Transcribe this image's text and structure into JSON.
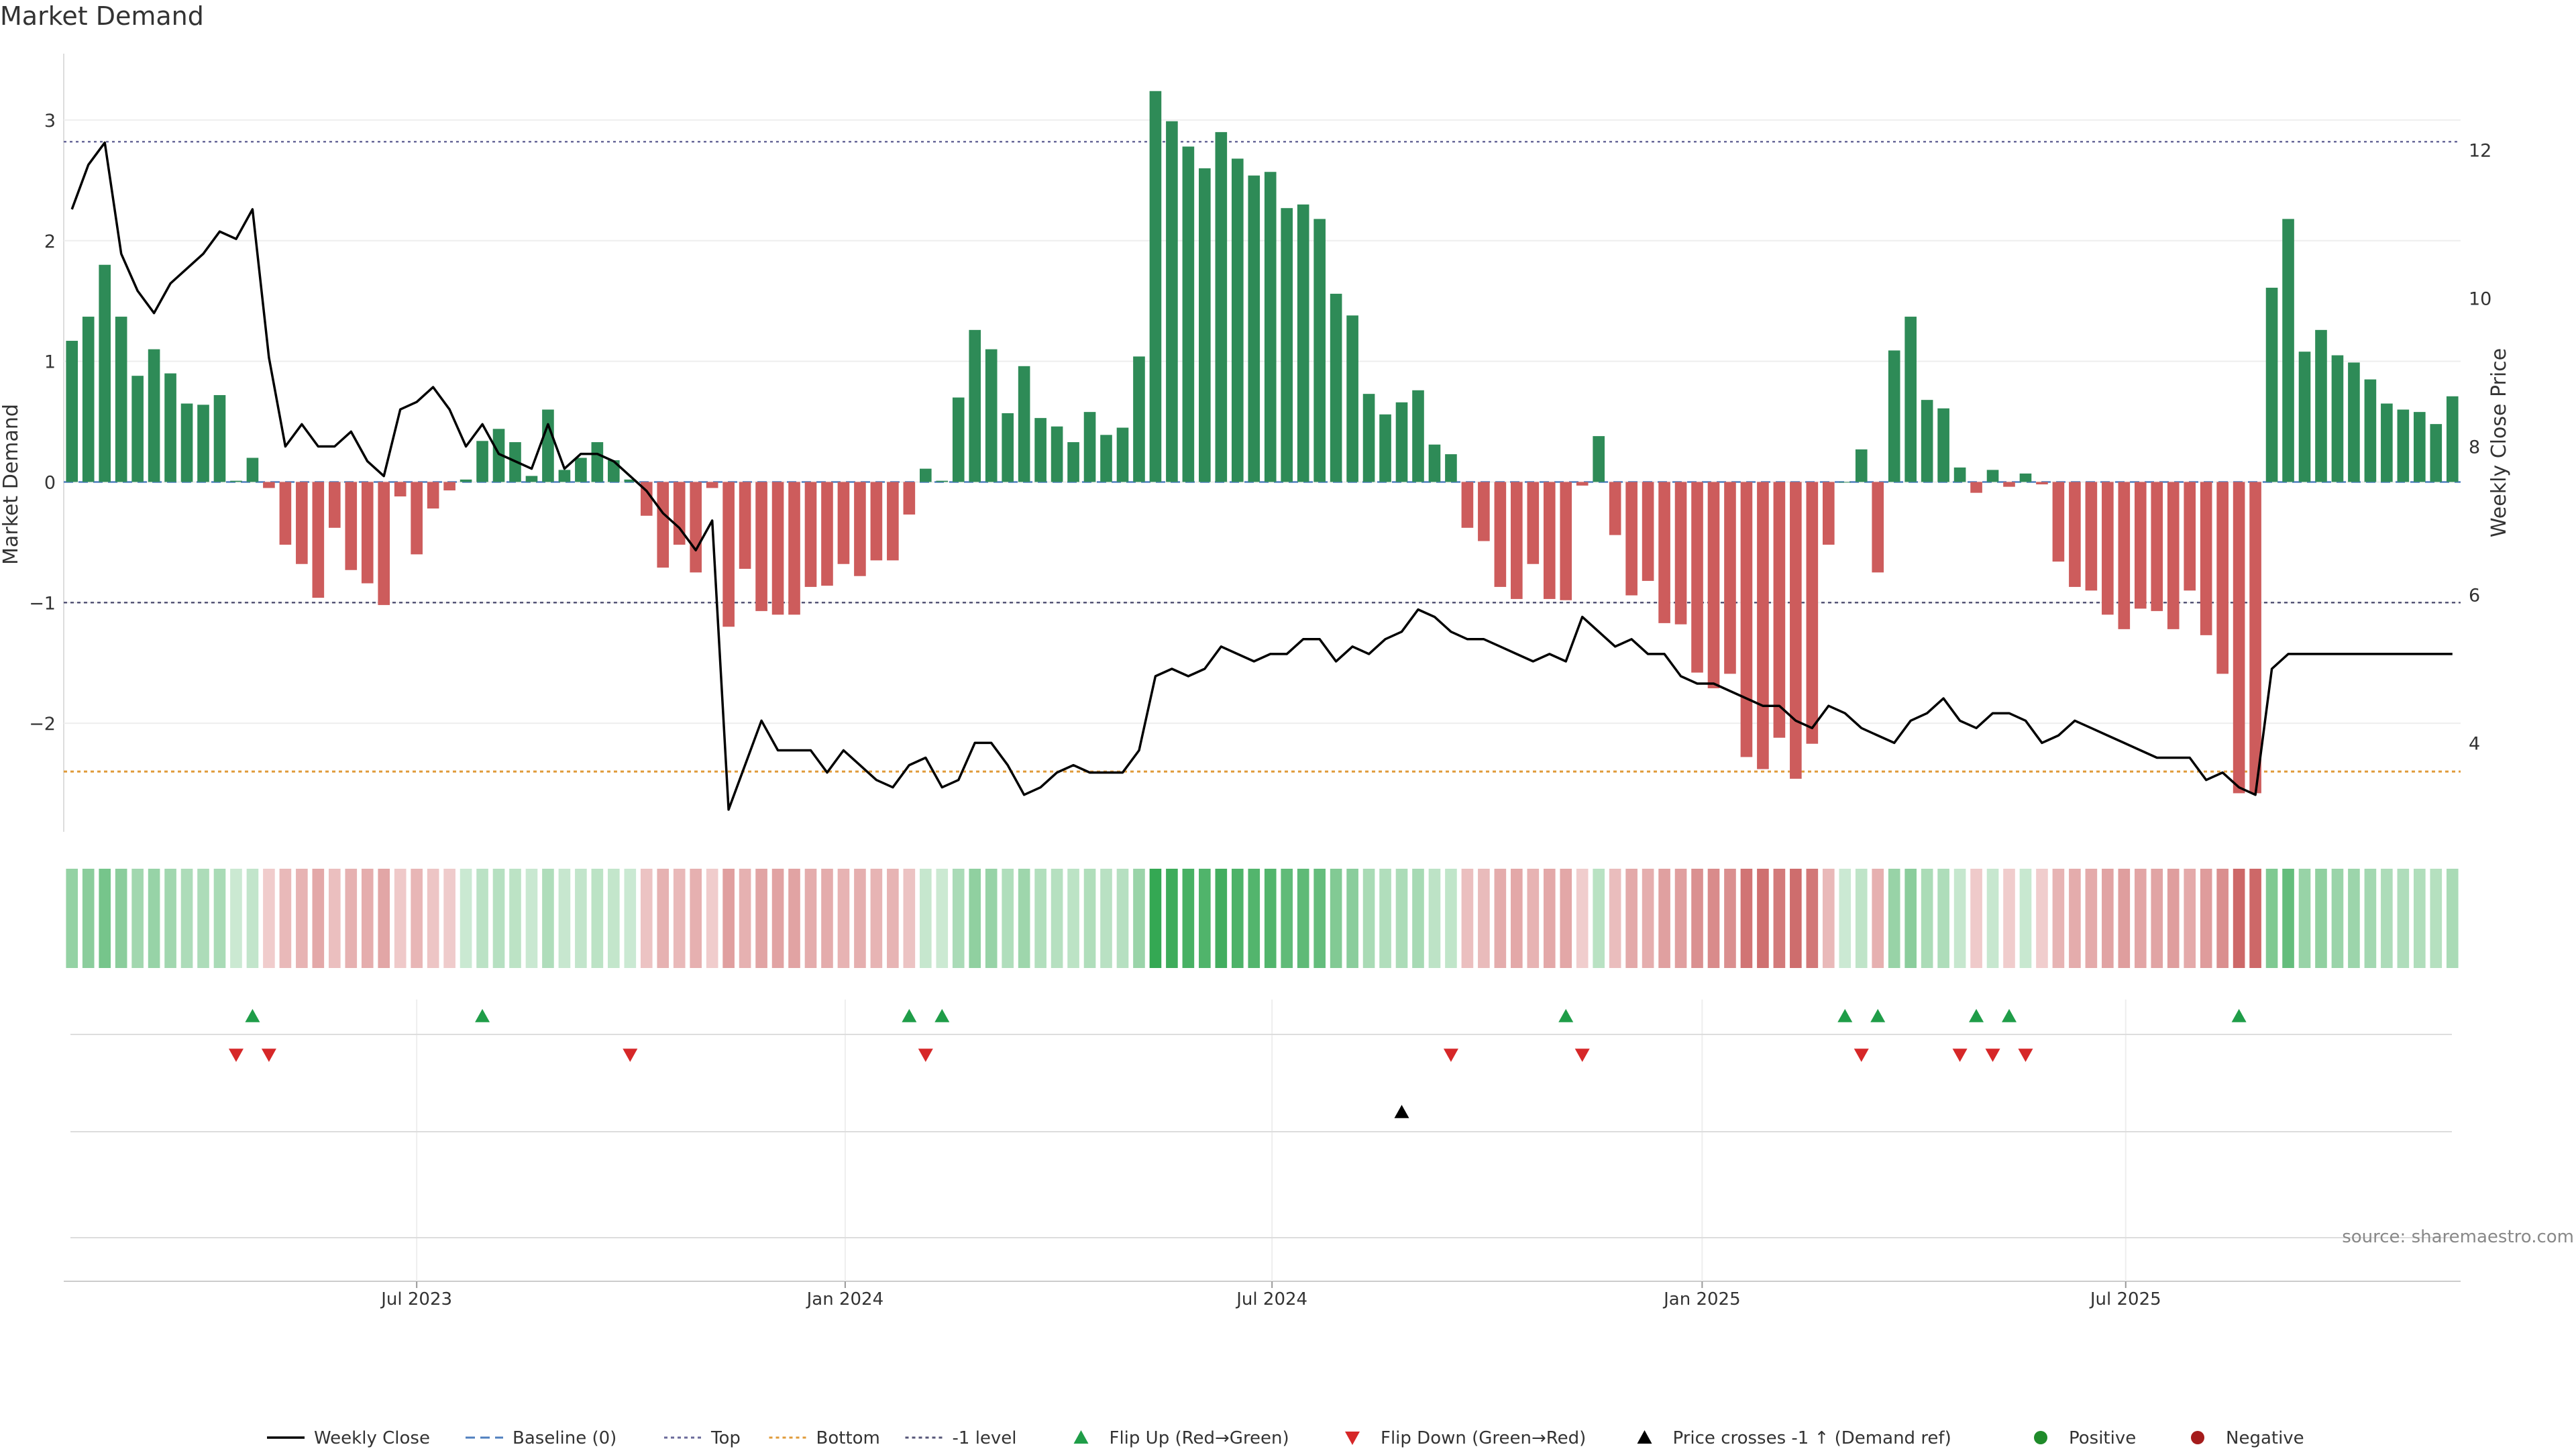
{
  "chart_data": {
    "type": "bar",
    "title": "Market Demand",
    "ylabel_left": "Market Demand",
    "ylabel_right": "Weekly Close Price",
    "ylim_left": [
      -2.9,
      3.55
    ],
    "ylim_right": [
      2.8,
      13.3
    ],
    "yticks_left": [
      {
        "v": 3,
        "label": "3"
      },
      {
        "v": 2,
        "label": "2"
      },
      {
        "v": 1,
        "label": "1"
      },
      {
        "v": 0,
        "label": "0"
      },
      {
        "v": -1,
        "label": "−1"
      },
      {
        "v": -2,
        "label": "−2"
      }
    ],
    "yticks_right": [
      {
        "v": 12,
        "label": "12"
      },
      {
        "v": 10,
        "label": "10"
      },
      {
        "v": 8,
        "label": "8"
      },
      {
        "v": 6,
        "label": "6"
      },
      {
        "v": 4,
        "label": "4"
      }
    ],
    "xticks": [
      {
        "label": "Jul 2023",
        "index": 21.5
      },
      {
        "label": "Jan 2024",
        "index": 47.6
      },
      {
        "label": "Jul 2024",
        "index": 73.6
      },
      {
        "label": "Jan 2025",
        "index": 99.8
      },
      {
        "label": "Jul 2025",
        "index": 125.6
      }
    ],
    "reference_lines": {
      "top": 2.82,
      "bottom": -2.4,
      "minus_one": -1,
      "baseline": 0
    },
    "market_demand": [
      1.17,
      1.37,
      1.8,
      1.37,
      0.88,
      1.1,
      0.9,
      0.65,
      0.64,
      0.72,
      0.01,
      0.2,
      -0.05,
      -0.52,
      -0.68,
      -0.96,
      -0.38,
      -0.73,
      -0.84,
      -1.02,
      -0.12,
      -0.6,
      -0.22,
      -0.07,
      0.02,
      0.34,
      0.44,
      0.33,
      0.05,
      0.6,
      0.1,
      0.2,
      0.33,
      0.18,
      0.02,
      -0.28,
      -0.71,
      -0.52,
      -0.75,
      -0.05,
      -1.2,
      -0.72,
      -1.07,
      -1.1,
      -1.1,
      -0.87,
      -0.86,
      -0.68,
      -0.78,
      -0.65,
      -0.65,
      -0.27,
      0.11,
      0.01,
      0.7,
      1.26,
      1.1,
      0.57,
      0.96,
      0.53,
      0.46,
      0.33,
      0.58,
      0.39,
      0.45,
      1.04,
      3.24,
      2.99,
      2.78,
      2.6,
      2.9,
      2.68,
      2.54,
      2.57,
      2.27,
      2.3,
      2.18,
      1.56,
      1.38,
      0.73,
      0.56,
      0.66,
      0.76,
      0.31,
      0.23,
      -0.38,
      -0.49,
      -0.87,
      -0.97,
      -0.68,
      -0.97,
      -0.98,
      -0.03,
      0.38,
      -0.44,
      -0.94,
      -0.82,
      -1.17,
      -1.18,
      -1.58,
      -1.71,
      -1.59,
      -2.28,
      -2.38,
      -2.12,
      -2.46,
      -2.17,
      -0.52,
      0,
      0.27,
      -0.75,
      1.09,
      1.37,
      0.68,
      0.61,
      0.12,
      -0.09,
      0.1,
      -0.04,
      0.07,
      -0.02,
      -0.66,
      -0.87,
      -0.9,
      -1.1,
      -1.22,
      -1.05,
      -1.07,
      -1.22,
      -0.9,
      -1.27,
      -1.59,
      -2.58,
      -2.58,
      1.61,
      2.18,
      1.08,
      1.26,
      1.05,
      0.99,
      0.85,
      0.65,
      0.6,
      0.58,
      0.48,
      0.71
    ],
    "weekly_close": [
      11.2,
      11.8,
      12.1,
      10.6,
      10.1,
      9.8,
      10.2,
      10.4,
      10.6,
      10.9,
      10.8,
      11.2,
      9.2,
      8.0,
      8.3,
      8.0,
      8.0,
      8.2,
      7.8,
      7.6,
      8.5,
      8.6,
      8.8,
      8.5,
      8.0,
      8.3,
      7.9,
      7.8,
      7.7,
      8.3,
      7.7,
      7.9,
      7.9,
      7.8,
      7.6,
      7.4,
      7.1,
      6.9,
      6.6,
      7.0,
      3.1,
      3.7,
      4.3,
      3.9,
      3.9,
      3.9,
      3.6,
      3.9,
      3.7,
      3.5,
      3.4,
      3.7,
      3.8,
      3.4,
      3.5,
      4.0,
      4.0,
      3.7,
      3.3,
      3.4,
      3.6,
      3.7,
      3.6,
      3.6,
      3.6,
      3.9,
      4.9,
      5.0,
      4.9,
      5.0,
      5.3,
      5.2,
      5.1,
      5.2,
      5.2,
      5.4,
      5.4,
      5.1,
      5.3,
      5.2,
      5.4,
      5.5,
      5.8,
      5.7,
      5.5,
      5.4,
      5.4,
      5.3,
      5.2,
      5.1,
      5.2,
      5.1,
      5.7,
      5.5,
      5.3,
      5.4,
      5.2,
      5.2,
      4.9,
      4.8,
      4.8,
      4.7,
      4.6,
      4.5,
      4.5,
      4.3,
      4.2,
      4.5,
      4.4,
      4.2,
      4.1,
      4.0,
      4.3,
      4.4,
      4.6,
      4.3,
      4.2,
      4.4,
      4.4,
      4.3,
      4.0,
      4.1,
      4.3,
      4.2,
      4.1,
      4.0,
      3.9,
      3.8,
      3.8,
      3.8,
      3.5,
      3.6,
      3.4,
      3.3,
      5.0,
      5.2,
      5.2,
      5.2,
      5.2,
      5.2,
      5.2,
      5.2,
      5.2,
      5.2,
      5.2,
      5.2
    ]
  },
  "annotations": {
    "flip_up_indices": [
      11,
      25,
      51,
      53,
      91,
      108,
      110,
      116,
      118,
      132
    ],
    "flip_down_indices": [
      10,
      12,
      34,
      52,
      84,
      92,
      109,
      115,
      117,
      119
    ],
    "price_cross_indices": [
      81
    ]
  },
  "colors": {
    "positive_bar": "#2e8b57",
    "negative_bar": "#cd5c5c",
    "price_line": "#000000",
    "top_line": "#6a6a9a",
    "bottom_line": "#e09b3a",
    "minus_one_line": "#555577",
    "baseline": "#4f7fbf",
    "flip_up": "#1f9d48",
    "flip_down": "#d62728",
    "price_cross": "#000000",
    "positive_dot": "#1f8b2a",
    "negative_dot": "#a51c1c"
  },
  "source_text": "source: sharemaestro.com",
  "legend": [
    {
      "label": "Weekly Close",
      "kind": "line",
      "color": "#000000"
    },
    {
      "label": "Baseline (0)",
      "kind": "dashed",
      "color": "#4f7fbf"
    },
    {
      "label": "Top",
      "kind": "dotted",
      "color": "#6a6a9a"
    },
    {
      "label": "Bottom",
      "kind": "dotted",
      "color": "#e09b3a"
    },
    {
      "label": "-1 level",
      "kind": "dotted",
      "color": "#555577"
    },
    {
      "label": "Flip Up (Red→Green)",
      "kind": "tri-up",
      "color": "#1f9d48"
    },
    {
      "label": "Flip Down (Green→Red)",
      "kind": "tri-down",
      "color": "#d62728"
    },
    {
      "label": "Price crosses -1 ↑ (Demand ref)",
      "kind": "tri-up",
      "color": "#000000"
    },
    {
      "label": "Positive",
      "kind": "dot",
      "color": "#1f8b2a"
    },
    {
      "label": "Negative",
      "kind": "dot",
      "color": "#a51c1c"
    }
  ]
}
